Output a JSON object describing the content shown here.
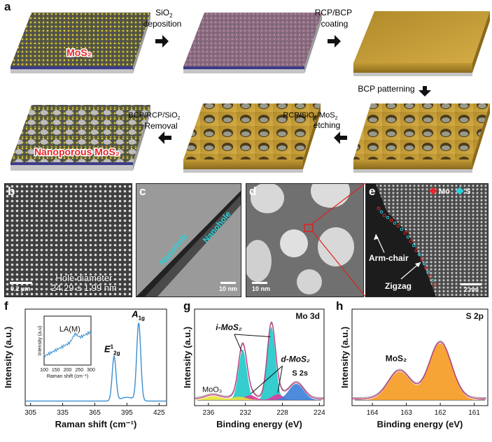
{
  "panel_labels": {
    "a": "a",
    "b": "b",
    "c": "c",
    "d": "d",
    "e": "e",
    "f": "f",
    "g": "g",
    "h": "h"
  },
  "schematic": {
    "mos2_label": "MoS₂",
    "step1": [
      "SiO",
      "2",
      " deposition"
    ],
    "step2": [
      "RCP/BCP",
      "coating"
    ],
    "step3": "BCP patterning",
    "step4": [
      "RCP/SiO",
      "2",
      "/MoS",
      "2",
      "etching"
    ],
    "step5": [
      "BCP/RCP/SiO",
      "2",
      "Removal"
    ],
    "final_label": "Nanoporous MoS₂"
  },
  "panel_b": {
    "scale": "0.2 µm",
    "caption_line1": "Hole diameter",
    "caption_line2": "24.29 ± 1.99 nm"
  },
  "panel_c": {
    "scale": "10 nm",
    "label_nanohole": "Nanohole",
    "label_nanohole2": "Nanohole"
  },
  "panel_d": {
    "scale": "10 nm"
  },
  "panel_e": {
    "scale": "2 nm",
    "legend_mo": "Mo",
    "legend_s": "S",
    "armchair": "Arm-chair",
    "zigzag": "Zigzag",
    "colors": {
      "mo": "#e8262b",
      "s": "#2ad1d8"
    }
  },
  "chart_data": [
    {
      "id": "f",
      "type": "line",
      "xlabel": "Raman shift (cm⁻¹)",
      "ylabel": "Intensity (a.u.)",
      "xticks": [
        305,
        335,
        365,
        395,
        425
      ],
      "xlim": [
        300,
        432
      ],
      "peak_labels": [
        {
          "text": "E",
          "sup": "1",
          "sub": "2g",
          "x": 383
        },
        {
          "text": "A",
          "sub": "1g",
          "x": 406
        }
      ],
      "series": [
        {
          "color": "#3a8fd0",
          "x": [
            300,
            320,
            340,
            360,
            370,
            376,
            380,
            383,
            386,
            390,
            395,
            400,
            403,
            406,
            409,
            413,
            420,
            432
          ],
          "y": [
            0.04,
            0.045,
            0.05,
            0.06,
            0.08,
            0.12,
            0.3,
            0.52,
            0.25,
            0.12,
            0.14,
            0.22,
            0.5,
            0.88,
            0.45,
            0.12,
            0.06,
            0.05
          ]
        }
      ],
      "inset": {
        "label": "LA(M)",
        "xlabel": "Raman shift (cm⁻¹)",
        "ylabel": "Intensity (a.u)",
        "xticks": [
          100,
          150,
          200,
          250,
          300
        ],
        "x": [
          100,
          120,
          140,
          160,
          180,
          200,
          220,
          230,
          240,
          260,
          280,
          300
        ],
        "y": [
          0.2,
          0.25,
          0.3,
          0.33,
          0.38,
          0.45,
          0.55,
          0.58,
          0.55,
          0.6,
          0.66,
          0.72
        ]
      }
    },
    {
      "id": "g",
      "type": "line",
      "title": "Mo 3d",
      "xlabel": "Binding energy (eV)",
      "ylabel": "Intensity (a.u.)",
      "xticks": [
        236,
        232,
        228,
        224
      ],
      "xlim": [
        237.5,
        223.5
      ],
      "reversed_x": true,
      "annotations": [
        "i-MoS₂",
        "d-MoS₂",
        "MoO₃",
        "S 2s"
      ],
      "components": [
        {
          "name": "i-MoS₂",
          "color": "#1fc8c8",
          "centers": [
            232.3,
            229.2
          ],
          "heights": [
            0.62,
            0.9
          ],
          "widths": [
            0.45,
            0.45
          ]
        },
        {
          "name": "d-MoS₂",
          "color": "#e03c9a",
          "centers": [
            231.5,
            228.5
          ],
          "heights": [
            0.06,
            0.07
          ],
          "widths": [
            0.6,
            0.6
          ]
        },
        {
          "name": "MoO₃",
          "color": "#e8e23a",
          "centers": [
            235.5,
            232.7
          ],
          "heights": [
            0.05,
            0.04
          ],
          "widths": [
            0.8,
            0.8
          ]
        },
        {
          "name": "S 2s",
          "color": "#3a7fd8",
          "centers": [
            226.5
          ],
          "heights": [
            0.2
          ],
          "widths": [
            0.8
          ]
        }
      ],
      "envelope_color": "#c0357a"
    },
    {
      "id": "h",
      "type": "line",
      "title": "S 2p",
      "xlabel": "Binding energy (eV)",
      "ylabel": "Intensity (a.u.)",
      "xticks": [
        164,
        163,
        162,
        161
      ],
      "xlim": [
        164.6,
        160.6
      ],
      "reversed_x": true,
      "annotations": [
        "MoS₂"
      ],
      "components": [
        {
          "name": "MoS₂",
          "color": "#f59a1f",
          "centers": [
            163.2,
            162.0
          ],
          "heights": [
            0.35,
            0.7
          ],
          "widths": [
            0.33,
            0.33
          ]
        }
      ],
      "envelope_color": "#c0357a"
    }
  ]
}
